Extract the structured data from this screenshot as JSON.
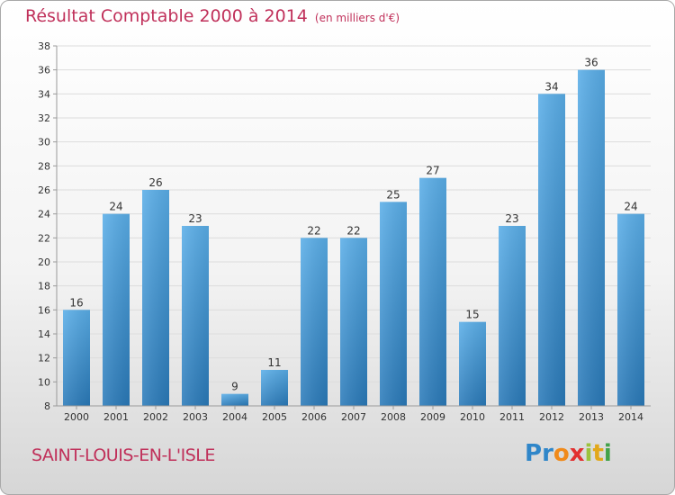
{
  "title": "Résultat Comptable 2000 à 2014",
  "unit": "(en milliers d'€)",
  "commune": "SAINT-LOUIS-EN-L'ISLE",
  "logo": {
    "letters": [
      "P",
      "r",
      "o",
      "x",
      "i",
      "t",
      "i"
    ]
  },
  "colors": {
    "title": "#c0305a",
    "bar_light": "#5aaee8",
    "bar_dark": "#2a7ab9",
    "axis": "#9a9a9a",
    "grid": "#dcdcdc"
  },
  "chart_data": {
    "type": "bar",
    "title": "Résultat Comptable 2000 à 2014",
    "ylabel": "",
    "xlabel": "",
    "categories": [
      "2000",
      "2001",
      "2002",
      "2003",
      "2004",
      "2005",
      "2006",
      "2007",
      "2008",
      "2009",
      "2010",
      "2011",
      "2012",
      "2013",
      "2014"
    ],
    "values": [
      16,
      24,
      26,
      23,
      9,
      11,
      22,
      22,
      25,
      27,
      15,
      23,
      34,
      36,
      24
    ],
    "ylim": [
      8,
      38
    ],
    "yticks": [
      8,
      10,
      12,
      14,
      16,
      18,
      20,
      22,
      24,
      26,
      28,
      30,
      32,
      34,
      36,
      38
    ],
    "grid": true
  }
}
